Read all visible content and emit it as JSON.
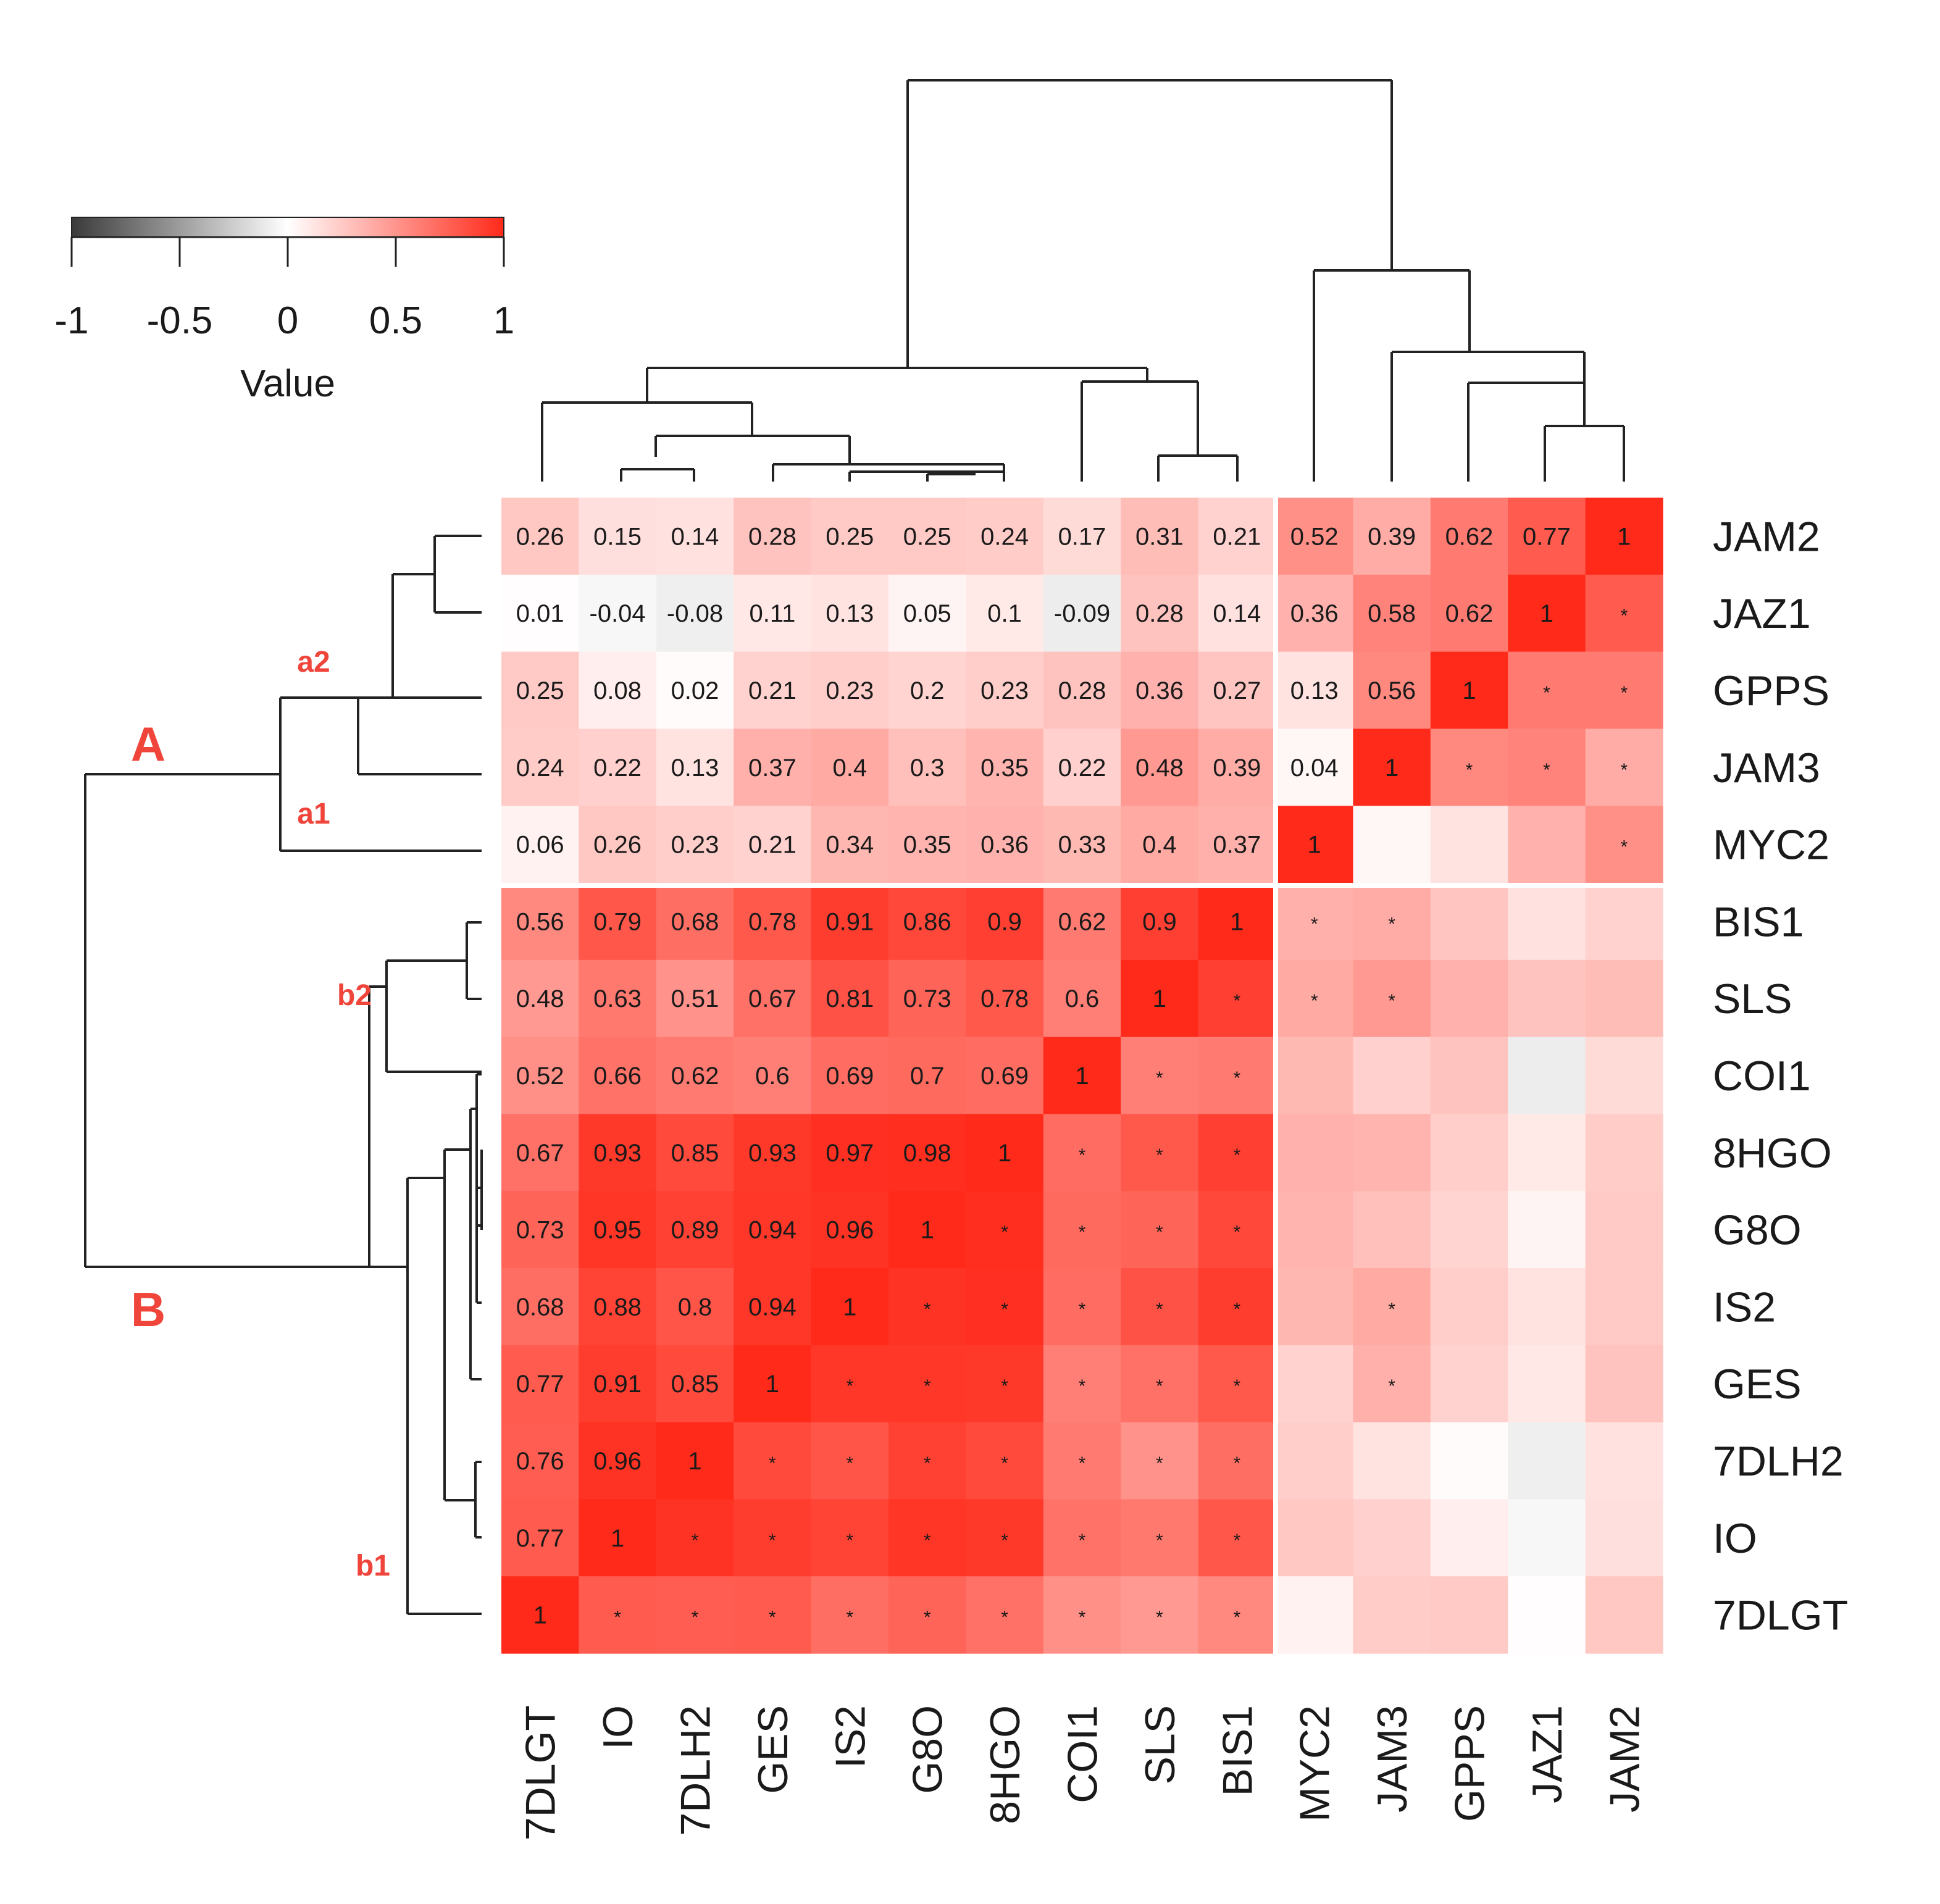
{
  "chart_data": {
    "type": "heatmap",
    "title": "",
    "colorbar": {
      "title": "Value",
      "range": [
        -1,
        1
      ],
      "ticks": [
        "-1",
        "-0.5",
        "0",
        "0.5",
        "1"
      ],
      "colors": {
        "low": "#3a3a3a",
        "mid": "#ffffff",
        "high": "#ff2a1a"
      }
    },
    "columns": [
      "7DLGT",
      "IO",
      "7DLH2",
      "GES",
      "IS2",
      "G8O",
      "8HGO",
      "COI1",
      "SLS",
      "BIS1",
      "MYC2",
      "JAM3",
      "GPPS",
      "JAZ1",
      "JAM2"
    ],
    "rows": [
      "JAM2",
      "JAZ1",
      "GPPS",
      "JAM3",
      "MYC2",
      "BIS1",
      "SLS",
      "COI1",
      "8HGO",
      "G8O",
      "IS2",
      "GES",
      "7DLH2",
      "IO",
      "7DLGT"
    ],
    "labels": [
      [
        "0.26",
        "0.15",
        "0.14",
        "0.28",
        "0.25",
        "0.25",
        "0.24",
        "0.17",
        "0.31",
        "0.21",
        "0.52",
        "0.39",
        "0.62",
        "0.77",
        "1"
      ],
      [
        "0.01",
        "-0.04",
        "-0.08",
        "0.11",
        "0.13",
        "0.05",
        "0.1",
        "-0.09",
        "0.28",
        "0.14",
        "0.36",
        "0.58",
        "0.62",
        "1",
        "*"
      ],
      [
        "0.25",
        "0.08",
        "0.02",
        "0.21",
        "0.23",
        "0.2",
        "0.23",
        "0.28",
        "0.36",
        "0.27",
        "0.13",
        "0.56",
        "1",
        "*",
        "*"
      ],
      [
        "0.24",
        "0.22",
        "0.13",
        "0.37",
        "0.4",
        "0.3",
        "0.35",
        "0.22",
        "0.48",
        "0.39",
        "0.04",
        "1",
        "*",
        "*",
        "*"
      ],
      [
        "0.06",
        "0.26",
        "0.23",
        "0.21",
        "0.34",
        "0.35",
        "0.36",
        "0.33",
        "0.4",
        "0.37",
        "1",
        "",
        "",
        "",
        "*"
      ],
      [
        "0.56",
        "0.79",
        "0.68",
        "0.78",
        "0.91",
        "0.86",
        "0.9",
        "0.62",
        "0.9",
        "1",
        "*",
        "*",
        "",
        "",
        ""
      ],
      [
        "0.48",
        "0.63",
        "0.51",
        "0.67",
        "0.81",
        "0.73",
        "0.78",
        "0.6",
        "1",
        "*",
        "*",
        "*",
        "",
        "",
        ""
      ],
      [
        "0.52",
        "0.66",
        "0.62",
        "0.6",
        "0.69",
        "0.7",
        "0.69",
        "1",
        "*",
        "*",
        "",
        "",
        "",
        "",
        ""
      ],
      [
        "0.67",
        "0.93",
        "0.85",
        "0.93",
        "0.97",
        "0.98",
        "1",
        "*",
        "*",
        "*",
        "",
        "",
        "",
        "",
        ""
      ],
      [
        "0.73",
        "0.95",
        "0.89",
        "0.94",
        "0.96",
        "1",
        "*",
        "*",
        "*",
        "*",
        "",
        "",
        "",
        "",
        ""
      ],
      [
        "0.68",
        "0.88",
        "0.8",
        "0.94",
        "1",
        "*",
        "*",
        "*",
        "*",
        "*",
        "",
        "*",
        "",
        "",
        ""
      ],
      [
        "0.77",
        "0.91",
        "0.85",
        "1",
        "*",
        "*",
        "*",
        "*",
        "*",
        "*",
        "",
        "*",
        "",
        "",
        ""
      ],
      [
        "0.76",
        "0.96",
        "1",
        "*",
        "*",
        "*",
        "*",
        "*",
        "*",
        "*",
        "",
        "",
        "",
        "",
        ""
      ],
      [
        "0.77",
        "1",
        "*",
        "*",
        "*",
        "*",
        "*",
        "*",
        "*",
        "*",
        "",
        "",
        "",
        "",
        ""
      ],
      [
        "1",
        "*",
        "*",
        "*",
        "*",
        "*",
        "*",
        "*",
        "*",
        "*",
        "",
        "",
        "",
        "",
        ""
      ]
    ],
    "values": [
      [
        0.26,
        0.15,
        0.14,
        0.28,
        0.25,
        0.25,
        0.24,
        0.17,
        0.31,
        0.21,
        0.52,
        0.39,
        0.62,
        0.77,
        1
      ],
      [
        0.01,
        -0.04,
        -0.08,
        0.11,
        0.13,
        0.05,
        0.1,
        -0.09,
        0.28,
        0.14,
        0.36,
        0.58,
        0.62,
        1,
        0.77
      ],
      [
        0.25,
        0.08,
        0.02,
        0.21,
        0.23,
        0.2,
        0.23,
        0.28,
        0.36,
        0.27,
        0.13,
        0.56,
        1,
        0.62,
        0.62
      ],
      [
        0.24,
        0.22,
        0.13,
        0.37,
        0.4,
        0.3,
        0.35,
        0.22,
        0.48,
        0.39,
        0.04,
        1,
        0.56,
        0.58,
        0.39
      ],
      [
        0.06,
        0.26,
        0.23,
        0.21,
        0.34,
        0.35,
        0.36,
        0.33,
        0.4,
        0.37,
        1,
        0.04,
        0.13,
        0.36,
        0.52
      ],
      [
        0.56,
        0.79,
        0.68,
        0.78,
        0.91,
        0.86,
        0.9,
        0.62,
        0.9,
        1,
        0.37,
        0.39,
        0.27,
        0.14,
        0.21
      ],
      [
        0.48,
        0.63,
        0.51,
        0.67,
        0.81,
        0.73,
        0.78,
        0.6,
        1,
        0.9,
        0.4,
        0.48,
        0.36,
        0.28,
        0.31
      ],
      [
        0.52,
        0.66,
        0.62,
        0.6,
        0.69,
        0.7,
        0.69,
        1,
        0.6,
        0.62,
        0.33,
        0.22,
        0.28,
        -0.09,
        0.17
      ],
      [
        0.67,
        0.93,
        0.85,
        0.93,
        0.97,
        0.98,
        1,
        0.69,
        0.78,
        0.9,
        0.36,
        0.35,
        0.23,
        0.1,
        0.24
      ],
      [
        0.73,
        0.95,
        0.89,
        0.94,
        0.96,
        1,
        0.98,
        0.7,
        0.73,
        0.86,
        0.35,
        0.3,
        0.2,
        0.05,
        0.25
      ],
      [
        0.68,
        0.88,
        0.8,
        0.94,
        1,
        0.96,
        0.97,
        0.69,
        0.81,
        0.91,
        0.34,
        0.4,
        0.23,
        0.13,
        0.25
      ],
      [
        0.77,
        0.91,
        0.85,
        1,
        0.94,
        0.94,
        0.93,
        0.6,
        0.67,
        0.78,
        0.21,
        0.37,
        0.21,
        0.11,
        0.28
      ],
      [
        0.76,
        0.96,
        1,
        0.85,
        0.8,
        0.89,
        0.85,
        0.62,
        0.51,
        0.68,
        0.23,
        0.13,
        0.02,
        -0.08,
        0.14
      ],
      [
        0.77,
        1,
        0.96,
        0.91,
        0.88,
        0.95,
        0.93,
        0.66,
        0.63,
        0.79,
        0.26,
        0.22,
        0.08,
        -0.04,
        0.15
      ],
      [
        1,
        0.77,
        0.76,
        0.77,
        0.68,
        0.73,
        0.67,
        0.52,
        0.48,
        0.56,
        0.06,
        0.24,
        0.25,
        0.01,
        0.26
      ]
    ],
    "group_labels": [
      "A",
      "B",
      "a1",
      "a2",
      "b1",
      "b2"
    ]
  }
}
